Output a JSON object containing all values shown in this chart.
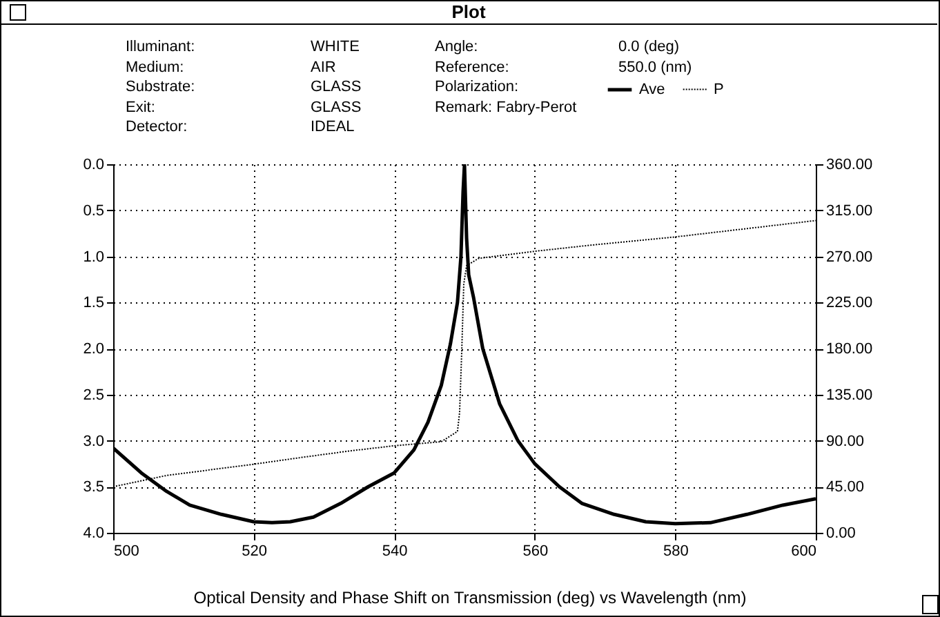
{
  "chart_data": {
    "type": "line",
    "title": "Plot",
    "xlabel": "Optical Density and Phase Shift on Transmission (deg)  vs  Wavelength (nm)",
    "annotations": [
      "Illuminant:",
      "WHITE",
      "Medium:",
      "AIR",
      "Substrate:",
      "GLASS",
      "Exit:",
      "GLASS",
      "Detector:",
      "IDEAL",
      "Angle:",
      "0.0 (deg)",
      "Reference:",
      "550.0 (nm)",
      "Polarization:",
      "Remark: Fabry-Perot"
    ],
    "series": [
      {
        "name": "Ave",
        "color": "#000000",
        "line_style": "solid",
        "x": [
          500,
          504,
          507.6,
          510.9,
          515.4,
          520,
          522.6,
          525.2,
          528.5,
          532.4,
          536.3,
          540,
          542.8,
          544.8,
          546.7,
          548,
          549,
          549.5,
          549.8,
          550,
          550.3,
          550.6,
          551.3,
          552.6,
          555,
          557.6,
          560,
          563.5,
          566.7,
          571.3,
          575.8,
          580,
          585,
          590.2,
          595.3,
          600
        ],
        "values": [
          3.08,
          3.35,
          3.55,
          3.7,
          3.8,
          3.88,
          3.89,
          3.88,
          3.83,
          3.68,
          3.5,
          3.35,
          3.1,
          2.8,
          2.4,
          1.95,
          1.5,
          1.0,
          0.3,
          0,
          0.8,
          1.2,
          1.45,
          2.0,
          2.6,
          3.0,
          3.25,
          3.5,
          3.68,
          3.8,
          3.88,
          3.9,
          3.89,
          3.8,
          3.7,
          3.63
        ]
      },
      {
        "name": "P",
        "color": "#000000",
        "line_style": "dotted",
        "axis": "y2",
        "x": [
          500,
          507.6,
          520,
          527.2,
          533.7,
          540,
          546.7,
          549,
          549.3,
          549.6,
          549.9,
          550.3,
          552,
          560,
          568,
          580,
          590,
          600
        ],
        "values": [
          45,
          56,
          67,
          74,
          80,
          85,
          89,
          99,
          117,
          175,
          243,
          261,
          268,
          275,
          281,
          289,
          297,
          305
        ]
      }
    ],
    "xlim": [
      500,
      600
    ],
    "xticks": [
      500,
      520,
      540,
      560,
      580,
      600
    ],
    "ylim": [
      4.0,
      0.0
    ],
    "yticks": [
      {
        "value": 0,
        "label": "0.0"
      },
      {
        "value": 0.5,
        "label": "0.5"
      },
      {
        "value": 1,
        "label": "1.0"
      },
      {
        "value": 1.5,
        "label": "1.5"
      },
      {
        "value": 2,
        "label": "2.0"
      },
      {
        "value": 2.5,
        "label": "2.5"
      },
      {
        "value": 3,
        "label": "3.0"
      },
      {
        "value": 3.5,
        "label": "3.5"
      },
      {
        "value": 4,
        "label": "4.0"
      }
    ],
    "y2lim": [
      0,
      360
    ],
    "y2ticks": [
      {
        "value": 0,
        "label": "0.00"
      },
      {
        "value": 45,
        "label": "45.00"
      },
      {
        "value": 90,
        "label": "90.00"
      },
      {
        "value": 135,
        "label": "135.00"
      },
      {
        "value": 180,
        "label": "180.00"
      },
      {
        "value": 225,
        "label": "225.00"
      },
      {
        "value": 270,
        "label": "270.00"
      },
      {
        "value": 315,
        "label": "315.00"
      },
      {
        "value": 360,
        "label": "360.00"
      }
    ],
    "grid": true,
    "legend": "top",
    "marker": "none"
  }
}
